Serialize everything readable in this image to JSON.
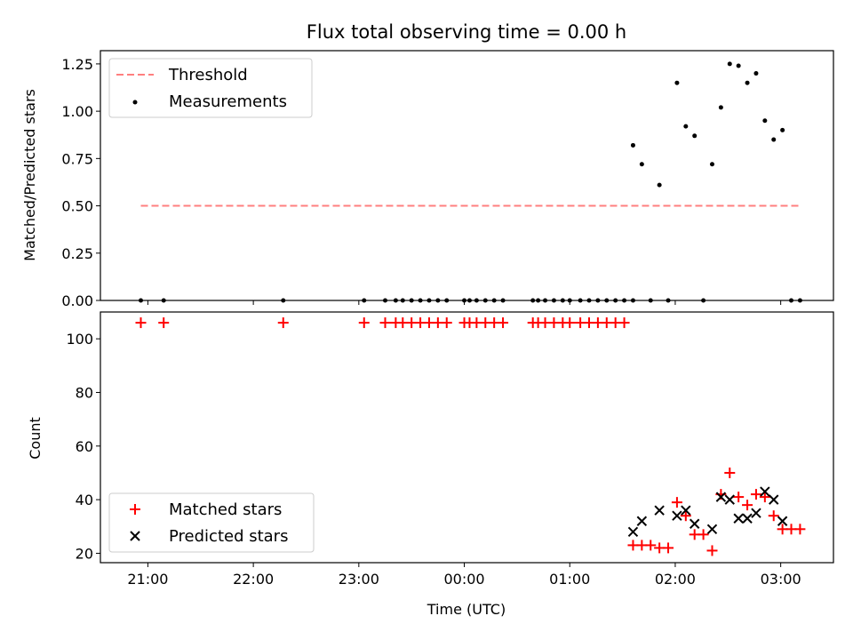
{
  "title": "Flux total observing time = 0.00 h",
  "chart_data": [
    {
      "type": "scatter",
      "panel": "top",
      "ylabel": "Matched/Predicted stars",
      "xlabel": "",
      "ylim": [
        0,
        1.32
      ],
      "yticks": [
        0.0,
        0.25,
        0.5,
        0.75,
        1.0,
        1.25
      ],
      "ytick_labels": [
        "0.00",
        "0.25",
        "0.50",
        "0.75",
        "1.00",
        "1.25"
      ],
      "legend_position": "top-left",
      "threshold": {
        "name": "Threshold",
        "value": 0.5,
        "x_start": "20:56",
        "x_end": "03:12",
        "color": "#ff7f7f"
      },
      "series": [
        {
          "name": "Measurements",
          "color": "#000000",
          "marker": "dot",
          "x": [
            "20:56",
            "21:09",
            "22:17",
            "23:03",
            "23:15",
            "23:21",
            "23:25",
            "23:30",
            "23:35",
            "23:40",
            "23:45",
            "23:50",
            "00:00",
            "00:03",
            "00:07",
            "00:12",
            "00:17",
            "00:22",
            "00:39",
            "00:42",
            "00:46",
            "00:51",
            "00:56",
            "01:00",
            "01:06",
            "01:11",
            "01:16",
            "01:21",
            "01:26",
            "01:31",
            "01:36",
            "01:46",
            "01:56",
            "02:16",
            "01:36",
            "01:41",
            "01:51",
            "02:01",
            "02:06",
            "02:11",
            "02:21",
            "02:26",
            "02:31",
            "02:36",
            "02:41",
            "02:46",
            "02:51",
            "02:56",
            "03:01",
            "03:06",
            "03:11"
          ],
          "y": [
            0,
            0,
            0,
            0,
            0,
            0,
            0,
            0,
            0,
            0,
            0,
            0,
            0,
            0,
            0,
            0,
            0,
            0,
            0,
            0,
            0,
            0,
            0,
            0,
            0,
            0,
            0,
            0,
            0,
            0,
            0,
            0,
            0,
            0,
            0.82,
            0.72,
            0.61,
            1.15,
            0.92,
            0.87,
            0.72,
            1.02,
            1.25,
            1.24,
            1.15,
            1.2,
            0.95,
            0.85,
            0.9,
            0.0,
            0.0
          ]
        }
      ]
    },
    {
      "type": "scatter",
      "panel": "bottom",
      "ylabel": "Count",
      "xlabel": "Time (UTC)",
      "ylim": [
        16.5,
        110
      ],
      "yticks": [
        20,
        40,
        60,
        80,
        100
      ],
      "ytick_labels": [
        "20",
        "40",
        "60",
        "80",
        "100"
      ],
      "xlim": [
        "20:33",
        "03:30"
      ],
      "xticks": [
        "21:00",
        "22:00",
        "23:00",
        "00:00",
        "01:00",
        "02:00",
        "03:00"
      ],
      "legend_position": "bottom-left",
      "series": [
        {
          "name": "Matched stars",
          "color": "#ff0000",
          "marker": "plus",
          "x": [
            "20:56",
            "21:09",
            "22:17",
            "23:03",
            "23:15",
            "23:21",
            "23:25",
            "23:30",
            "23:35",
            "23:40",
            "23:45",
            "23:50",
            "00:00",
            "00:03",
            "00:07",
            "00:12",
            "00:17",
            "00:22",
            "00:39",
            "00:42",
            "00:46",
            "00:51",
            "00:56",
            "01:00",
            "01:06",
            "01:11",
            "01:16",
            "01:21",
            "01:26",
            "01:31",
            "01:36",
            "01:41",
            "01:46",
            "01:51",
            "01:56",
            "02:01",
            "02:06",
            "02:11",
            "02:16",
            "02:21",
            "02:26",
            "02:31",
            "02:36",
            "02:41",
            "02:46",
            "02:51",
            "02:56",
            "03:01",
            "03:06",
            "03:11"
          ],
          "y": [
            106,
            106,
            106,
            106,
            106,
            106,
            106,
            106,
            106,
            106,
            106,
            106,
            106,
            106,
            106,
            106,
            106,
            106,
            106,
            106,
            106,
            106,
            106,
            106,
            106,
            106,
            106,
            106,
            106,
            106,
            23,
            23,
            23,
            22,
            22,
            39,
            34,
            27,
            27,
            21,
            42,
            50,
            41,
            38,
            42,
            41,
            34,
            29,
            29,
            29
          ]
        },
        {
          "name": "Predicted stars",
          "color": "#000000",
          "marker": "x",
          "x": [
            "01:36",
            "01:41",
            "01:51",
            "02:01",
            "02:06",
            "02:11",
            "02:21",
            "02:26",
            "02:31",
            "02:36",
            "02:41",
            "02:46",
            "02:51",
            "02:56",
            "03:01"
          ],
          "y": [
            28,
            32,
            36,
            34,
            36,
            31,
            29,
            41,
            40,
            33,
            33,
            35,
            43,
            40,
            32
          ]
        }
      ]
    }
  ]
}
